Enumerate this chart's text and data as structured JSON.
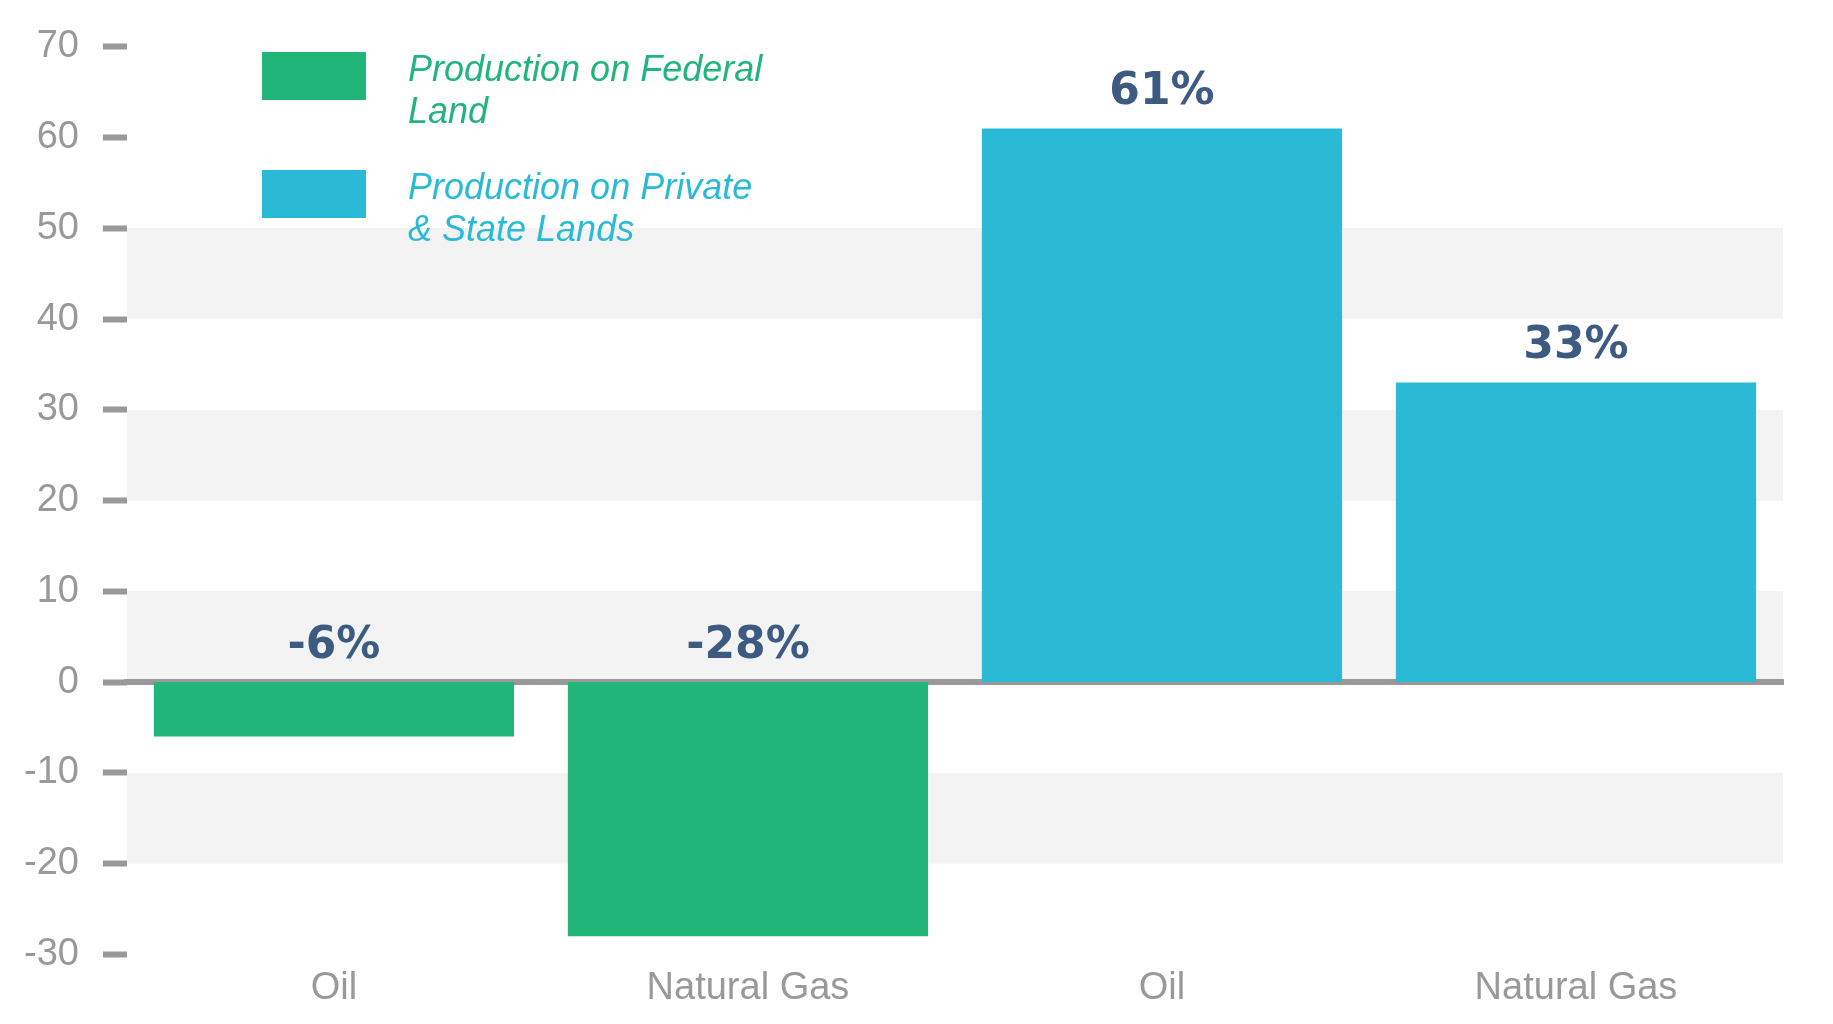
{
  "chart_data": {
    "type": "bar",
    "categories": [
      "Oil",
      "Natural Gas",
      "Oil",
      "Natural Gas"
    ],
    "series": [
      {
        "name": "Production on Federal Land",
        "color": "#21b57a",
        "values": [
          -6,
          -28,
          null,
          null
        ],
        "value_labels": [
          "-6%",
          "-28%",
          null,
          null
        ]
      },
      {
        "name": "Production on Private & State Lands",
        "color": "#2bbad6",
        "values": [
          null,
          null,
          61,
          33
        ],
        "value_labels": [
          null,
          null,
          "61%",
          "33%"
        ]
      }
    ],
    "ylim": [
      -30,
      70
    ],
    "yticks": [
      -30,
      -20,
      -10,
      0,
      10,
      20,
      30,
      40,
      50,
      60,
      70
    ],
    "grid": "y",
    "legend": "top left"
  }
}
